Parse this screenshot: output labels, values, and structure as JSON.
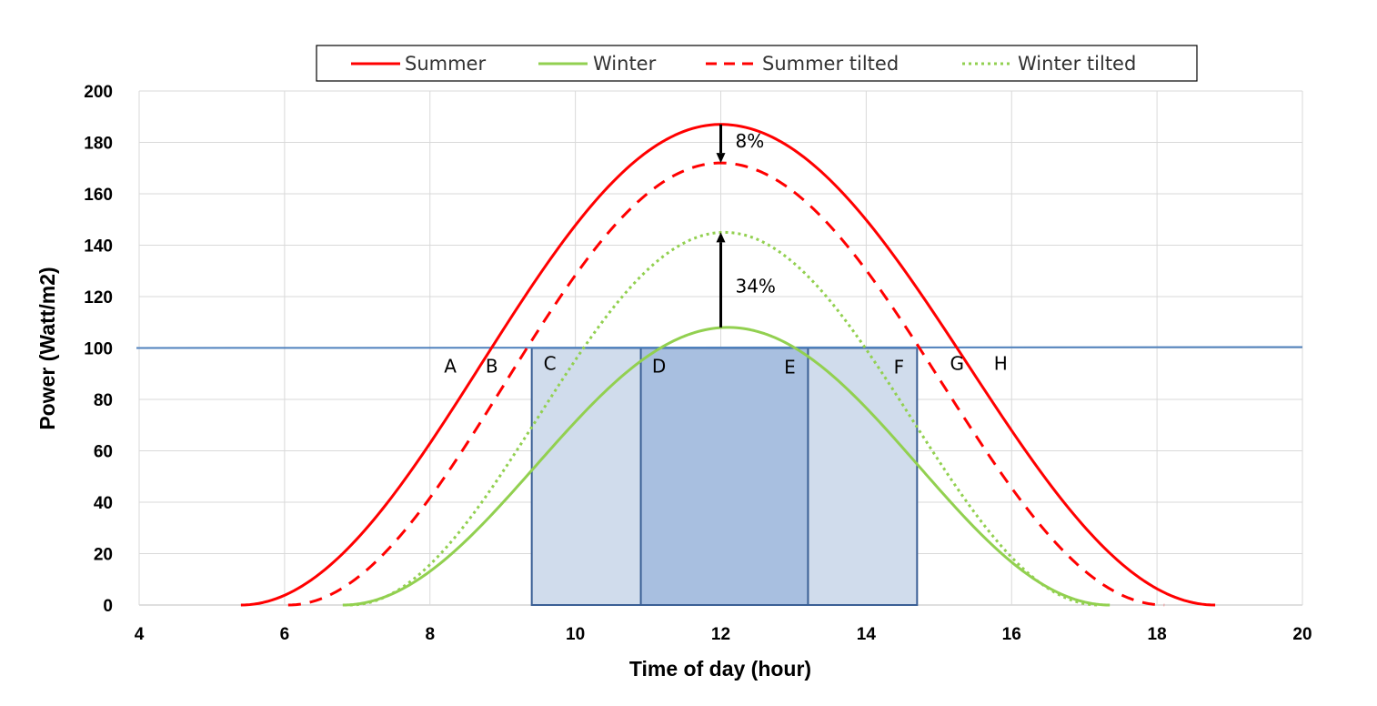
{
  "chart_data": {
    "type": "line",
    "xlabel": "Time of day (hour)",
    "ylabel": "Power (Watt/m2)",
    "xlim": [
      4,
      20
    ],
    "ylim": [
      0,
      200
    ],
    "x_ticks": [
      4,
      6,
      8,
      10,
      12,
      14,
      16,
      18,
      20
    ],
    "y_ticks": [
      0,
      20,
      40,
      60,
      80,
      100,
      120,
      140,
      160,
      180,
      200
    ],
    "grid": true,
    "legend_position": "top",
    "series": [
      {
        "name": "Summer",
        "style": "solid",
        "color": "#ff0000",
        "start": 5.4,
        "end": 18.8,
        "peak_x": 12.0,
        "peak": 187
      },
      {
        "name": "Winter",
        "style": "solid",
        "color": "#92d050",
        "start": 6.8,
        "end": 17.35,
        "peak_x": 12.1,
        "peak": 108
      },
      {
        "name": "Summer tilted",
        "style": "dashed",
        "color": "#ff0000",
        "start": 6.05,
        "end": 18.1,
        "peak_x": 12.0,
        "peak": 172
      },
      {
        "name": "Winter tilted",
        "style": "dotted",
        "color": "#92d050",
        "start": 6.9,
        "end": 17.2,
        "peak_x": 12.05,
        "peak": 145
      }
    ],
    "reference_line": {
      "y": 100,
      "color": "#4f81bd"
    },
    "regions": [
      {
        "x0": 9.4,
        "x1": 14.7,
        "y0": 0,
        "y1": 100,
        "fill": "#d0dcec"
      },
      {
        "x0": 10.9,
        "x1": 13.2,
        "y0": 0,
        "y1": 100,
        "fill": "#a8bfe0"
      }
    ],
    "point_labels": [
      {
        "text": "A",
        "x": 8.28,
        "y": 93
      },
      {
        "text": "B",
        "x": 8.85,
        "y": 93
      },
      {
        "text": "C",
        "x": 9.65,
        "y": 94
      },
      {
        "text": "D",
        "x": 11.15,
        "y": 93
      },
      {
        "text": "E",
        "x": 12.95,
        "y": 92.5
      },
      {
        "text": "F",
        "x": 14.45,
        "y": 92.5
      },
      {
        "text": "G",
        "x": 15.25,
        "y": 94
      },
      {
        "text": "H",
        "x": 15.85,
        "y": 94
      }
    ],
    "annotations": [
      {
        "text": "8%",
        "arrow_x": 12.0,
        "from_y": 187,
        "to_y": 172,
        "label_x": 12.2,
        "label_y": 180.5
      },
      {
        "text": "34%",
        "arrow_x": 12.0,
        "from_y": 108,
        "to_y": 145,
        "label_x": 12.2,
        "label_y": 124
      }
    ]
  }
}
